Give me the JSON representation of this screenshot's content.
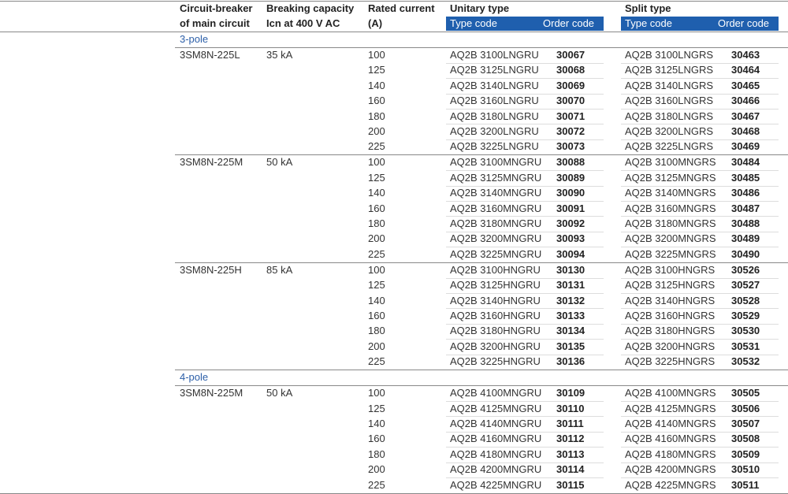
{
  "table": {
    "header": {
      "breaker": [
        "Circuit-breaker",
        "of main circuit"
      ],
      "capacity": [
        "Breaking capacity",
        "Icn at 400 V AC"
      ],
      "current": [
        "Rated current",
        "(A)"
      ],
      "unitary": {
        "title": "Unitary type",
        "type_code": "Type code",
        "order_code": "Order code"
      },
      "split": {
        "title": "Split type",
        "type_code": "Type code",
        "order_code": "Order code"
      }
    },
    "sections": [
      {
        "title": "3-pole",
        "groups": [
          {
            "breaker": "3SM8N-225L",
            "capacity": "35 kA",
            "rows": [
              [
                "100",
                "AQ2B 3100LNGRU",
                "30067",
                "AQ2B 3100LNGRS",
                "30463"
              ],
              [
                "125",
                "AQ2B 3125LNGRU",
                "30068",
                "AQ2B 3125LNGRS",
                "30464"
              ],
              [
                "140",
                "AQ2B 3140LNGRU",
                "30069",
                "AQ2B 3140LNGRS",
                "30465"
              ],
              [
                "160",
                "AQ2B 3160LNGRU",
                "30070",
                "AQ2B 3160LNGRS",
                "30466"
              ],
              [
                "180",
                "AQ2B 3180LNGRU",
                "30071",
                "AQ2B 3180LNGRS",
                "30467"
              ],
              [
                "200",
                "AQ2B 3200LNGRU",
                "30072",
                "AQ2B 3200LNGRS",
                "30468"
              ],
              [
                "225",
                "AQ2B 3225LNGRU",
                "30073",
                "AQ2B 3225LNGRS",
                "30469"
              ]
            ]
          },
          {
            "breaker": "3SM8N-225M",
            "capacity": "50 kA",
            "rows": [
              [
                "100",
                "AQ2B 3100MNGRU",
                "30088",
                "AQ2B 3100MNGRS",
                "30484"
              ],
              [
                "125",
                "AQ2B 3125MNGRU",
                "30089",
                "AQ2B 3125MNGRS",
                "30485"
              ],
              [
                "140",
                "AQ2B 3140MNGRU",
                "30090",
                "AQ2B 3140MNGRS",
                "30486"
              ],
              [
                "160",
                "AQ2B 3160MNGRU",
                "30091",
                "AQ2B 3160MNGRS",
                "30487"
              ],
              [
                "180",
                "AQ2B 3180MNGRU",
                "30092",
                "AQ2B 3180MNGRS",
                "30488"
              ],
              [
                "200",
                "AQ2B 3200MNGRU",
                "30093",
                "AQ2B 3200MNGRS",
                "30489"
              ],
              [
                "225",
                "AQ2B 3225MNGRU",
                "30094",
                "AQ2B 3225MNGRS",
                "30490"
              ]
            ]
          },
          {
            "breaker": "3SM8N-225H",
            "capacity": "85 kA",
            "rows": [
              [
                "100",
                "AQ2B 3100HNGRU",
                "30130",
                "AQ2B 3100HNGRS",
                "30526"
              ],
              [
                "125",
                "AQ2B 3125HNGRU",
                "30131",
                "AQ2B 3125HNGRS",
                "30527"
              ],
              [
                "140",
                "AQ2B 3140HNGRU",
                "30132",
                "AQ2B 3140HNGRS",
                "30528"
              ],
              [
                "160",
                "AQ2B 3160HNGRU",
                "30133",
                "AQ2B 3160HNGRS",
                "30529"
              ],
              [
                "180",
                "AQ2B 3180HNGRU",
                "30134",
                "AQ2B 3180HNGRS",
                "30530"
              ],
              [
                "200",
                "AQ2B 3200HNGRU",
                "30135",
                "AQ2B 3200HNGRS",
                "30531"
              ],
              [
                "225",
                "AQ2B 3225HNGRU",
                "30136",
                "AQ2B 3225HNGRS",
                "30532"
              ]
            ]
          }
        ]
      },
      {
        "title": "4-pole",
        "groups": [
          {
            "breaker": "3SM8N-225M",
            "capacity": "50 kA",
            "rows": [
              [
                "100",
                "AQ2B 4100MNGRU",
                "30109",
                "AQ2B 4100MNGRS",
                "30505"
              ],
              [
                "125",
                "AQ2B 4125MNGRU",
                "30110",
                "AQ2B 4125MNGRS",
                "30506"
              ],
              [
                "140",
                "AQ2B 4140MNGRU",
                "30111",
                "AQ2B 4140MNGRS",
                "30507"
              ],
              [
                "160",
                "AQ2B 4160MNGRU",
                "30112",
                "AQ2B 4160MNGRS",
                "30508"
              ],
              [
                "180",
                "AQ2B 4180MNGRU",
                "30113",
                "AQ2B 4180MNGRS",
                "30509"
              ],
              [
                "200",
                "AQ2B 4200MNGRU",
                "30114",
                "AQ2B 4200MNGRS",
                "30510"
              ],
              [
                "225",
                "AQ2B 4225MNGRU",
                "30115",
                "AQ2B 4225MNGRS",
                "30511"
              ]
            ]
          }
        ]
      }
    ]
  }
}
